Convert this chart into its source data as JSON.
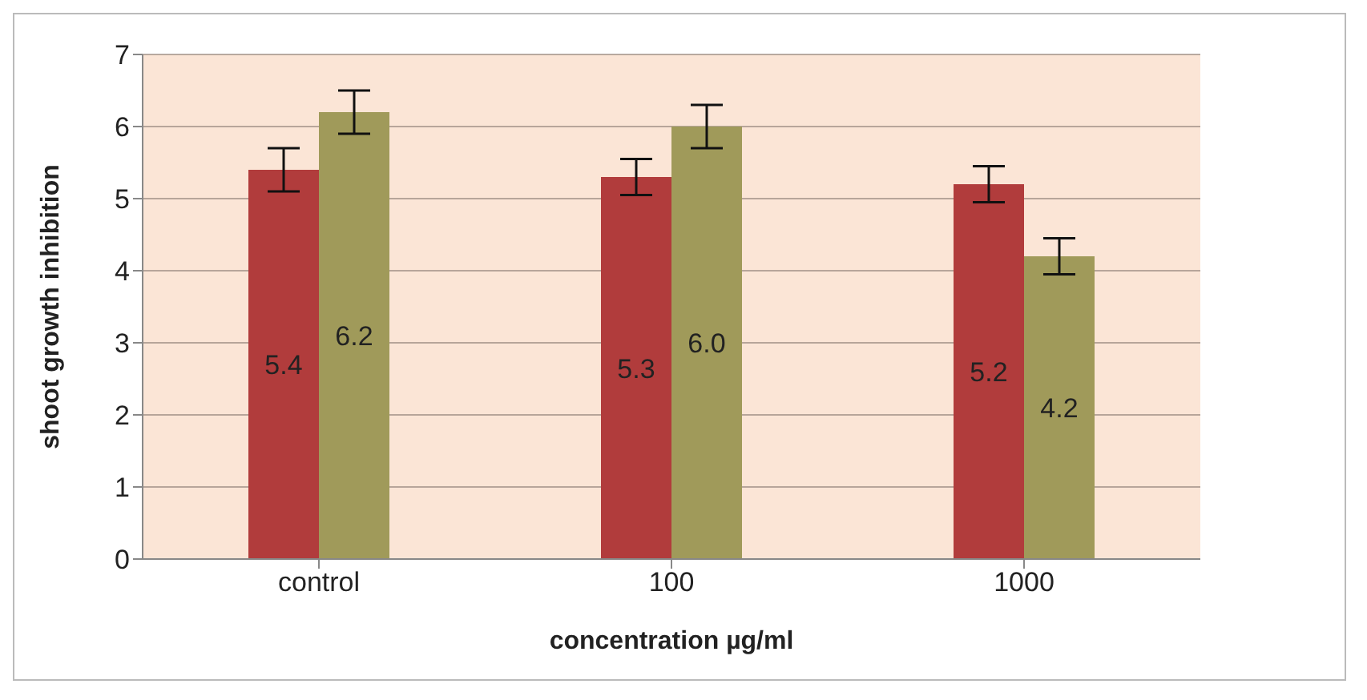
{
  "chart_data": {
    "type": "bar",
    "categories": [
      "control",
      "100",
      "1000"
    ],
    "xlabel": "concentration µg/ml",
    "ylabel": "shoot growth inhibition",
    "series": [
      {
        "color": "#b13c3c",
        "values": [
          5.4,
          5.3,
          5.2
        ],
        "errors": [
          0.3,
          0.25,
          0.25
        ],
        "value_labels": [
          "5.4",
          "5.3",
          "5.2"
        ]
      },
      {
        "color": "#a09a5a",
        "values": [
          6.2,
          6.0,
          4.2
        ],
        "errors": [
          0.3,
          0.3,
          0.25
        ],
        "value_labels": [
          "6.2",
          "6.0",
          "4.2"
        ]
      }
    ],
    "ylim": [
      0,
      7
    ],
    "yticks": [
      0,
      1,
      2,
      3,
      4,
      5,
      6,
      7
    ],
    "grid": "y"
  }
}
